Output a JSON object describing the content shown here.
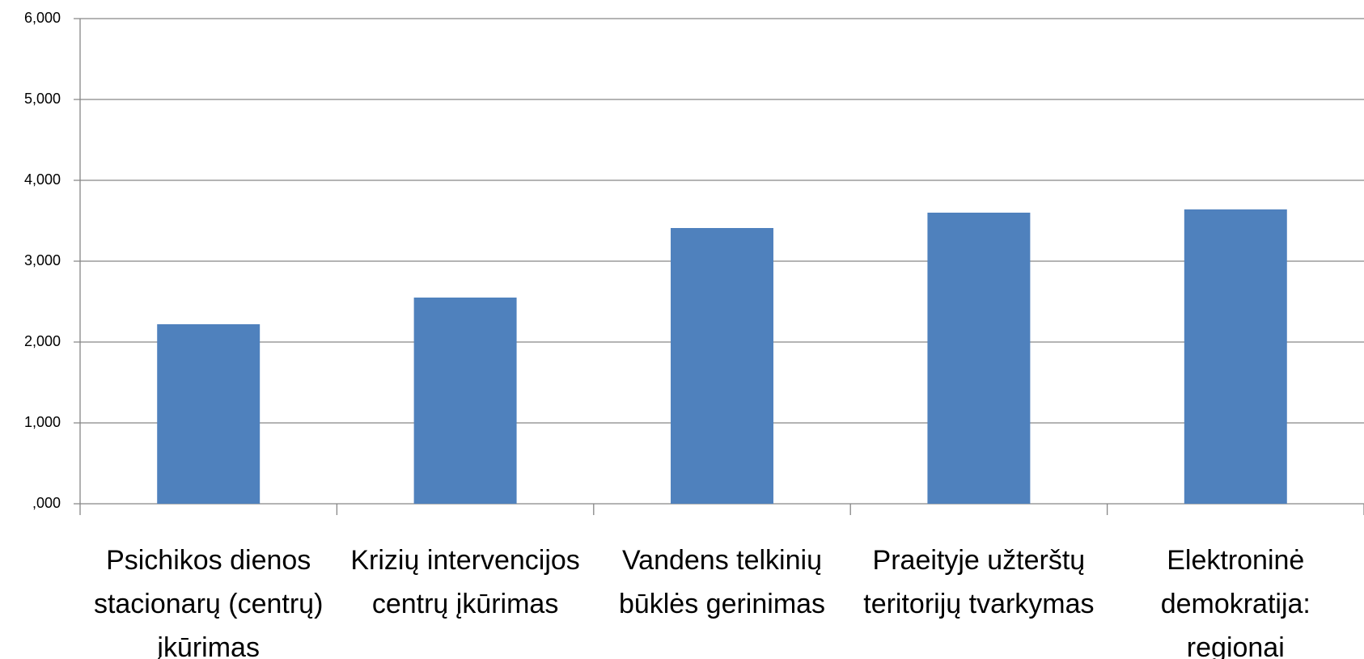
{
  "chart_data": {
    "type": "bar",
    "categories": [
      "Psichikos dienos stacionarų (centrų) įkūrimas",
      "Krizių intervencijos centrų įkūrimas",
      "Vandens telkinių būklės gerinimas",
      "Praeityje užterštų teritorijų tvarkymas",
      "Elektroninė demokratija: regionai"
    ],
    "values": [
      2220,
      2550,
      3410,
      3600,
      3640
    ],
    "color": "#4f81bd",
    "ylim": [
      0,
      6000
    ],
    "yticks": [
      {
        "value": 0,
        "label": ",000"
      },
      {
        "value": 1000,
        "label": "1,000"
      },
      {
        "value": 2000,
        "label": "2,000"
      },
      {
        "value": 3000,
        "label": "3,000"
      },
      {
        "value": 4000,
        "label": "4,000"
      },
      {
        "value": 5000,
        "label": "5,000"
      },
      {
        "value": 6000,
        "label": "6,000"
      }
    ],
    "grid": true
  }
}
